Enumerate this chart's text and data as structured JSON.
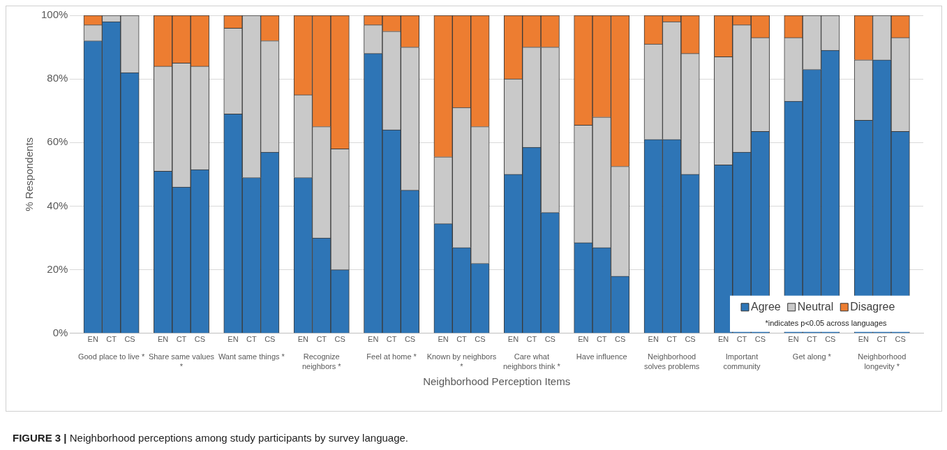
{
  "chart_data": {
    "type": "bar",
    "stacked": true,
    "xlabel": "Neighborhood Perception Items",
    "ylabel": "% Respondents",
    "categories": [
      "EN",
      "CT",
      "CS",
      "EN",
      "CT",
      "CS",
      "EN",
      "CT",
      "CS",
      "EN",
      "CT",
      "CS",
      "EN",
      "CT",
      "CS",
      "EN",
      "CT",
      "CS",
      "EN",
      "CT",
      "CS",
      "EN",
      "CT",
      "CS",
      "EN",
      "CT",
      "CS",
      "EN",
      "CT",
      "CS",
      "EN",
      "CT",
      "CS",
      "EN",
      "CT",
      "CS"
    ],
    "series": [
      {
        "name": "Agree",
        "color": "#2e75b6",
        "values": [
          92,
          98,
          82,
          51,
          46,
          51.5,
          69,
          49,
          57,
          49,
          30,
          20,
          88,
          64,
          45,
          34.5,
          27,
          22,
          50,
          58.5,
          38,
          28.5,
          27,
          18,
          61,
          61,
          50,
          53,
          57,
          63.5,
          73,
          83,
          89,
          67,
          86,
          63.5
        ]
      },
      {
        "name": "Neutral",
        "color": "#c9c9c9",
        "values": [
          5,
          2,
          18,
          33,
          39,
          32.5,
          27,
          51,
          35,
          26,
          35,
          38,
          9,
          31,
          45,
          21,
          44,
          43,
          30,
          31.5,
          52,
          37,
          41,
          34.5,
          30,
          37,
          38,
          34,
          40,
          29.5,
          20,
          17,
          11,
          19,
          14,
          29.5
        ]
      },
      {
        "name": "Disagree",
        "color": "#ed7d31",
        "values": [
          3,
          0,
          0,
          16,
          15,
          16,
          4,
          0,
          8,
          25,
          35,
          42,
          3,
          5,
          10,
          44.5,
          29,
          35,
          20,
          10,
          10,
          34.5,
          32,
          47.5,
          9,
          2,
          12,
          13,
          3,
          7,
          7,
          0,
          0,
          14,
          0,
          7
        ]
      }
    ],
    "ylim": [
      0,
      100
    ],
    "yticks": [
      {
        "value": 0,
        "label": "0%"
      },
      {
        "value": 20,
        "label": "20%"
      },
      {
        "value": 40,
        "label": "40%"
      },
      {
        "value": 60,
        "label": "60%"
      },
      {
        "value": 80,
        "label": "80%"
      },
      {
        "value": 100,
        "label": "100%"
      }
    ],
    "grid": "y",
    "legend": "bottom right",
    "annotations": [
      "Good place to live *",
      "Share same values *",
      "Want same things *",
      "Recognize neighbors *",
      "Feel at home *",
      "Known by neighbors *",
      "Care what neighbors think *",
      "Have influence",
      "Neighborhood solves problems",
      "Important community",
      "Get along *",
      "Neighborhood longevity *",
      "*indicates p<0.05 across languages",
      "FIGURE 3 | Neighborhood perceptions among study participants by survey language."
    ]
  }
}
